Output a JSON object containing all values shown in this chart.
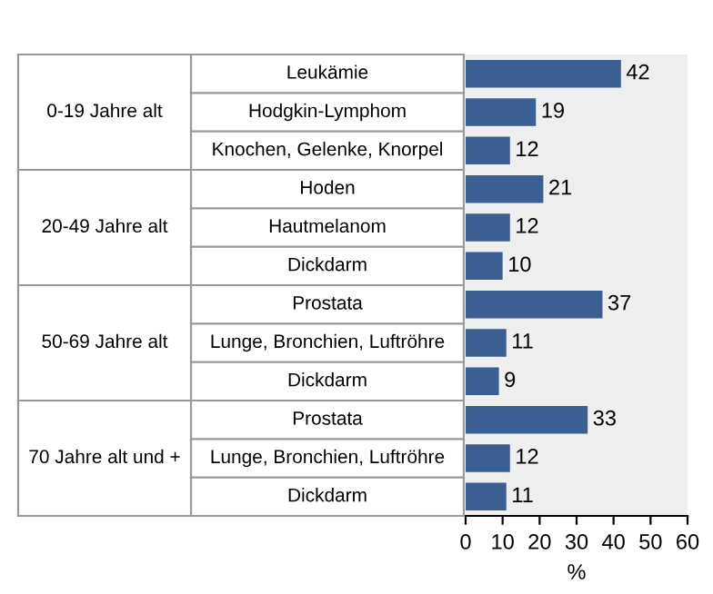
{
  "chart_data": {
    "type": "bar",
    "orientation": "horizontal",
    "categories": [
      "Leukämie",
      "Hodgkin-Lymphom",
      "Knochen, Gelenke, Knorpel",
      "Hoden",
      "Hautmelanom",
      "Dickdarm",
      "Prostata",
      "Lunge, Bronchien, Luftröhre",
      "Dickdarm",
      "Prostata",
      "Lunge, Bronchien, Luftröhre",
      "Dickdarm"
    ],
    "values": [
      42,
      19,
      12,
      21,
      12,
      10,
      37,
      11,
      9,
      33,
      12,
      11
    ],
    "color": "#3c5f91",
    "data_labels": true,
    "xlim": [
      0,
      60
    ],
    "xticks": [
      0,
      10,
      20,
      30,
      40,
      50,
      60
    ],
    "xlabel": "%",
    "grid": false,
    "annotations": [
      "0-19 Jahre alt",
      "20-49 Jahre alt",
      "50-69 Jahre alt",
      "70 Jahre alt und +"
    ]
  }
}
